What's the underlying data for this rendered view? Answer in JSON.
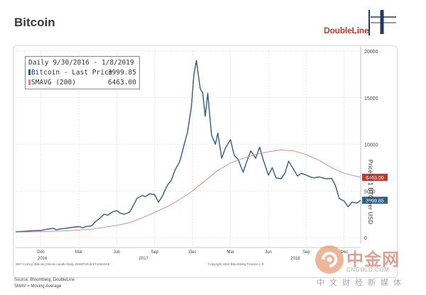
{
  "title": "Bitcoin",
  "logo_text": "DoubleLine",
  "legend": {
    "header": "Daily 9/30/2016 - 1/8/2019",
    "btc_label": "Bitcoin - Last Price",
    "btc_value": "3999.85",
    "sma_label": "SMAVG (200)",
    "sma_value": "6463.00"
  },
  "y_axis_label": "Price of 1 BTC per USD",
  "footer_left": "XBT Curncy (Bitcoin) bitcoin candle Daily 30SEP2016-07JAN2019",
  "footer_mid": "Copyright 2019 Bloomberg Finance L.P.",
  "source_lines": [
    "Source: Bloomberg, DoubleLine",
    "SMAV = Moving Average"
  ],
  "watermark": {
    "cn": "中金网",
    "url": "CNGOLD.COM",
    "sub": "中文财经新媒体"
  },
  "colors": {
    "btc": "#2e5d8a",
    "sma": "#d98a95",
    "grid": "#cfcfcf",
    "tag_btc": "#2e5d8a",
    "tag_sma": "#c0392b"
  },
  "chart_data": {
    "type": "line",
    "ylim": [
      0,
      20000
    ],
    "y_ticks": [
      0,
      5000,
      10000,
      15000,
      20000
    ],
    "x_range_months": [
      0,
      27.3
    ],
    "x_ticks": [
      {
        "m": 2.0,
        "label": "Dec"
      },
      {
        "m": 5.0,
        "label": "Mar"
      },
      {
        "m": 8.0,
        "label": "Jun"
      },
      {
        "m": 11.0,
        "label": "Sep"
      },
      {
        "m": 14.0,
        "label": "Dec"
      },
      {
        "m": 17.0,
        "label": "Mar"
      },
      {
        "m": 20.0,
        "label": "Jun"
      },
      {
        "m": 23.0,
        "label": "Sep"
      },
      {
        "m": 26.0,
        "label": "Dec"
      }
    ],
    "x_year_labels": [
      {
        "m": 1.0,
        "label": "2016"
      },
      {
        "m": 9.0,
        "label": "2017"
      },
      {
        "m": 21.0,
        "label": "2018"
      }
    ],
    "last_price_tag": "3999.85",
    "sma_tag": "6463.00",
    "series": [
      {
        "name": "Bitcoin - Last Price",
        "x": [
          0,
          0.5,
          1.0,
          1.5,
          2.0,
          2.5,
          3.0,
          3.2,
          3.5,
          4.0,
          4.5,
          5.0,
          5.3,
          5.6,
          6.0,
          6.3,
          6.6,
          7.0,
          7.3,
          7.6,
          8.0,
          8.3,
          8.6,
          9.0,
          9.3,
          9.6,
          10.0,
          10.3,
          10.6,
          11.0,
          11.3,
          11.6,
          12.0,
          12.3,
          12.6,
          13.0,
          13.3,
          13.6,
          13.9,
          14.1,
          14.3,
          14.6,
          14.8,
          15.0,
          15.2,
          15.5,
          15.8,
          16.0,
          16.3,
          16.6,
          17.0,
          17.3,
          17.6,
          18.0,
          18.3,
          18.6,
          19.0,
          19.3,
          19.6,
          20.0,
          20.3,
          20.6,
          21.0,
          21.3,
          21.6,
          22.0,
          22.3,
          22.6,
          23.0,
          23.3,
          23.6,
          24.0,
          24.3,
          24.6,
          25.0,
          25.3,
          25.6,
          26.0,
          26.3,
          26.6,
          27.0,
          27.3
        ],
        "y": [
          610,
          660,
          700,
          740,
          760,
          900,
          1000,
          830,
          920,
          1000,
          1100,
          1180,
          1050,
          1200,
          1250,
          1700,
          2000,
          2500,
          2400,
          2700,
          2900,
          2600,
          2500,
          2700,
          3400,
          4200,
          4500,
          4400,
          4700,
          4600,
          3800,
          4400,
          5600,
          6100,
          7200,
          8200,
          9800,
          11300,
          14000,
          17400,
          19000,
          16000,
          15500,
          13000,
          15500,
          11000,
          10000,
          11200,
          8500,
          9600,
          10500,
          8800,
          8400,
          7000,
          8200,
          9300,
          8500,
          9700,
          8300,
          6700,
          7500,
          6400,
          6300,
          6900,
          8200,
          7300,
          6600,
          6900,
          6700,
          6500,
          6400,
          6500,
          6400,
          6300,
          6350,
          5600,
          4200,
          3900,
          3300,
          3800,
          3700,
          3999.85
        ]
      },
      {
        "name": "SMAVG (200)",
        "x": [
          0,
          2,
          4,
          6,
          8,
          9,
          10,
          11,
          12,
          13,
          14,
          15,
          16,
          17,
          18,
          19,
          20,
          21,
          22,
          23,
          24,
          25,
          26,
          27.3
        ],
        "y": [
          580,
          640,
          720,
          900,
          1300,
          1600,
          2100,
          2700,
          3300,
          4100,
          5000,
          6100,
          7200,
          8000,
          8500,
          8900,
          9200,
          9400,
          9300,
          8900,
          8300,
          7500,
          6900,
          6463
        ]
      }
    ]
  }
}
